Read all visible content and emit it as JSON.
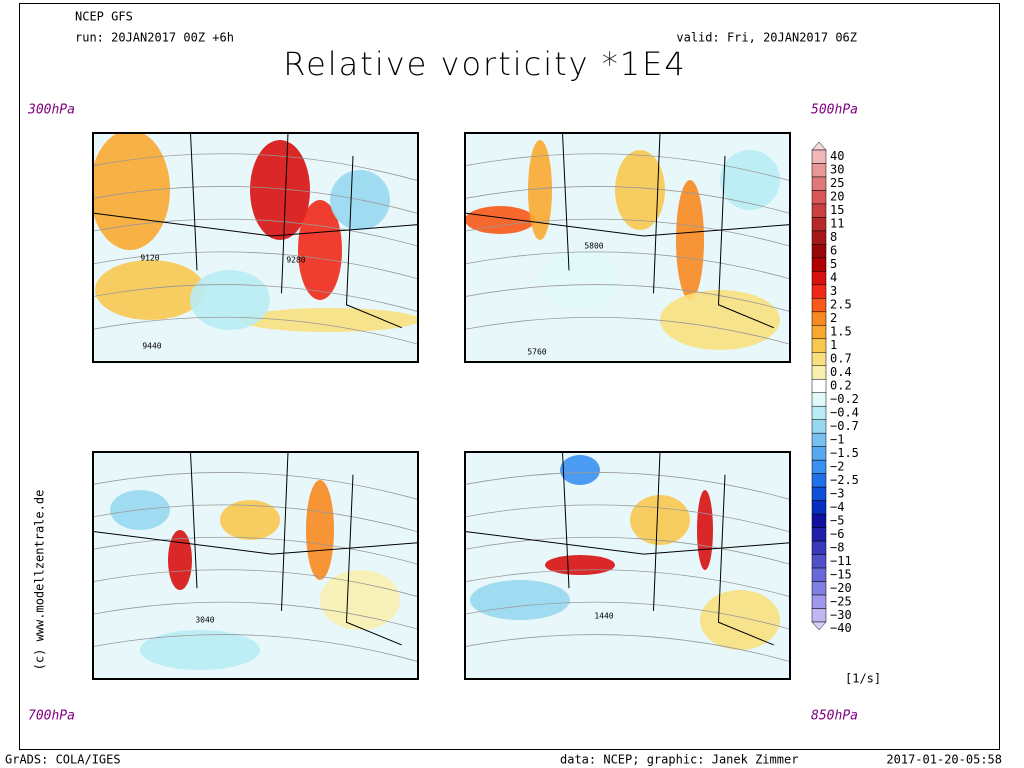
{
  "header": {
    "model": "NCEP GFS",
    "run": "run: 20JAN2017 00Z +6h",
    "valid": "valid: Fri, 20JAN2017 06Z",
    "title": "Relative vorticity *1E4"
  },
  "panels": [
    {
      "level": "300hPa",
      "contour_labels": [
        "9120",
        "9280",
        "9440"
      ]
    },
    {
      "level": "500hPa",
      "contour_labels": [
        "5800",
        "5760"
      ]
    },
    {
      "level": "700hPa",
      "contour_labels": [
        "3040"
      ]
    },
    {
      "level": "850hPa",
      "contour_labels": [
        "1440"
      ]
    }
  ],
  "colorbar": {
    "labels": [
      "40",
      "30",
      "25",
      "20",
      "15",
      "11",
      "8",
      "6",
      "5",
      "4",
      "3",
      "2.5",
      "2",
      "1.5",
      "1",
      "0.7",
      "0.4",
      "0.2",
      "−0.2",
      "−0.4",
      "−0.7",
      "−1",
      "−1.5",
      "−2",
      "−2.5",
      "−3",
      "−4",
      "−5",
      "−6",
      "−8",
      "−11",
      "−15",
      "−20",
      "−25",
      "−30",
      "−40"
    ],
    "colors": [
      "#f8d8d8",
      "#f0b8b8",
      "#e89898",
      "#e07878",
      "#d85858",
      "#c84040",
      "#b82828",
      "#a81818",
      "#980808",
      "#b00000",
      "#d81010",
      "#f02818",
      "#f85818",
      "#f88820",
      "#f8a830",
      "#f8c850",
      "#f8e080",
      "#f8f0b0",
      "#ffffff",
      "#e0f8f8",
      "#b8ecf4",
      "#98d8f0",
      "#78c0f0",
      "#58a8f0",
      "#3890f0",
      "#2070e8",
      "#1050d8",
      "#0830c0",
      "#1010a0",
      "#2020a8",
      "#3838b8",
      "#5050c8",
      "#6868d8",
      "#8080e0",
      "#a098e8",
      "#c0b8f0",
      "#d8d0f8"
    ],
    "units": "[1/s]"
  },
  "credit": "(c) www.modellzentrale.de",
  "footer": {
    "left": "GrADS: COLA/IGES",
    "center": "data: NCEP; graphic: Janek Zimmer",
    "right": "2017-01-20-05:58"
  }
}
